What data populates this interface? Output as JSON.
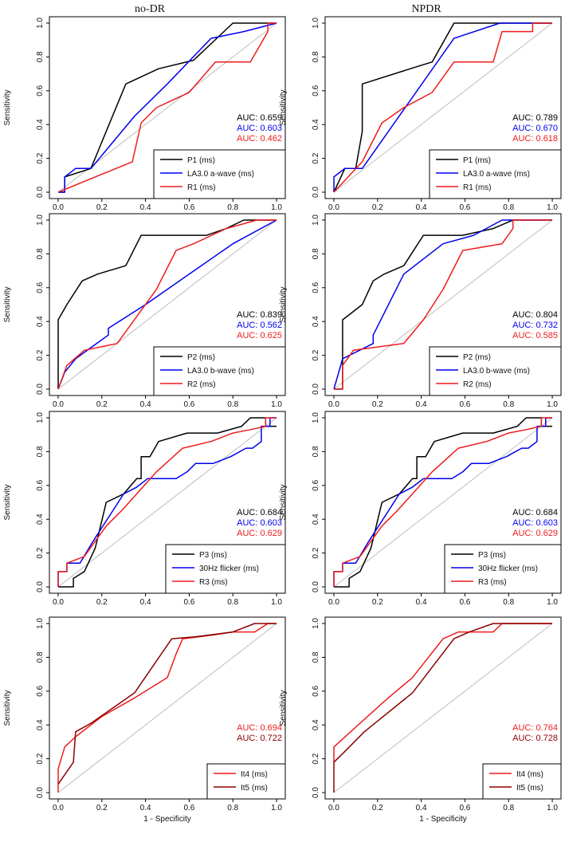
{
  "figure": {
    "column_titles": [
      "no-DR",
      "NPDR"
    ],
    "ylabel": "Sensitivity",
    "xlabel": "1 - Specificity"
  },
  "colors": {
    "black": "#000000",
    "blue": "#0000ee",
    "red": "#ee1c1c",
    "darkred": "#8b0000",
    "diagonal": "#bdbdbd"
  },
  "chart_data": [
    {
      "type": "line",
      "panel": "no-DR row 1",
      "xlim": [
        0,
        1
      ],
      "ylim": [
        0,
        1
      ],
      "xticks": [
        "0.0",
        "0.2",
        "0.4",
        "0.6",
        "0.8",
        "1.0"
      ],
      "yticks": [
        "0.0",
        "0.2",
        "0.4",
        "0.6",
        "0.8",
        "1.0"
      ],
      "legend_position": "bottom-right",
      "reference_diagonal": true,
      "series": [
        {
          "name": "P1 (ms)",
          "color": "black",
          "auc": "AUC: 0.659",
          "x": [
            0,
            0.03,
            0.03,
            0.15,
            0.22,
            0.31,
            0.46,
            0.62,
            0.8,
            1.0
          ],
          "y": [
            0,
            0,
            0.09,
            0.14,
            0.36,
            0.64,
            0.73,
            0.78,
            1.0,
            1.0
          ]
        },
        {
          "name": "LA3.0 a-wave (ms)",
          "color": "blue",
          "auc": "AUC: 0.603",
          "x": [
            0,
            0.03,
            0.03,
            0.08,
            0.15,
            0.35,
            0.5,
            0.7,
            0.85,
            1.0
          ],
          "y": [
            0,
            0,
            0.09,
            0.14,
            0.14,
            0.45,
            0.64,
            0.91,
            0.95,
            1.0
          ]
        },
        {
          "name": "R1 (ms)",
          "color": "red",
          "auc": "AUC: 0.462",
          "x": [
            0,
            0.34,
            0.38,
            0.45,
            0.6,
            0.72,
            0.88,
            0.96,
            0.96,
            1.0
          ],
          "y": [
            0,
            0.18,
            0.41,
            0.5,
            0.59,
            0.77,
            0.77,
            0.95,
            1.0,
            1.0
          ]
        }
      ]
    },
    {
      "type": "line",
      "panel": "NPDR row 1",
      "xlim": [
        0,
        1
      ],
      "ylim": [
        0,
        1
      ],
      "xticks": [
        "0.0",
        "0.2",
        "0.4",
        "0.6",
        "0.8",
        "1.0"
      ],
      "yticks": [
        "0.0",
        "0.2",
        "0.4",
        "0.6",
        "0.8",
        "1.0"
      ],
      "legend_position": "bottom-right",
      "reference_diagonal": true,
      "series": [
        {
          "name": "P1 (ms)",
          "color": "black",
          "auc": "AUC: 0.789",
          "x": [
            0,
            0.05,
            0.1,
            0.13,
            0.13,
            0.35,
            0.45,
            0.55,
            1.0
          ],
          "y": [
            0,
            0.14,
            0.14,
            0.36,
            0.64,
            0.73,
            0.77,
            1.0,
            1.0
          ]
        },
        {
          "name": "LA3.0 a-wave (ms)",
          "color": "blue",
          "auc": "AUC: 0.670",
          "x": [
            0,
            0,
            0.05,
            0.13,
            0.55,
            0.76,
            1.0
          ],
          "y": [
            0,
            0.09,
            0.14,
            0.14,
            0.91,
            1.0,
            1.0
          ]
        },
        {
          "name": "R1 (ms)",
          "color": "red",
          "auc": "AUC: 0.618",
          "x": [
            0,
            0.13,
            0.22,
            0.32,
            0.45,
            0.55,
            0.73,
            0.77,
            0.91,
            0.91,
            1.0
          ],
          "y": [
            0,
            0.18,
            0.41,
            0.5,
            0.59,
            0.77,
            0.77,
            0.95,
            0.95,
            1.0,
            1.0
          ]
        }
      ]
    },
    {
      "type": "line",
      "panel": "no-DR row 2",
      "xlim": [
        0,
        1
      ],
      "ylim": [
        0,
        1
      ],
      "xticks": [
        "0.0",
        "0.2",
        "0.4",
        "0.6",
        "0.8",
        "1.0"
      ],
      "yticks": [
        "0.0",
        "0.2",
        "0.4",
        "0.6",
        "0.8",
        "1.0"
      ],
      "legend_position": "bottom-right",
      "reference_diagonal": true,
      "series": [
        {
          "name": "P2 (ms)",
          "color": "black",
          "auc": "AUC: 0.839",
          "x": [
            0,
            0,
            0.04,
            0.11,
            0.18,
            0.31,
            0.38,
            0.68,
            0.77,
            0.85,
            1.0
          ],
          "y": [
            0,
            0.41,
            0.5,
            0.64,
            0.68,
            0.73,
            0.91,
            0.91,
            0.95,
            1.0,
            1.0
          ]
        },
        {
          "name": "LA3.0 b-wave (ms)",
          "color": "blue",
          "auc": "AUC: 0.562",
          "x": [
            0,
            0.03,
            0.08,
            0.23,
            0.23,
            0.4,
            0.6,
            0.8,
            1.0
          ],
          "y": [
            0,
            0.1,
            0.18,
            0.32,
            0.36,
            0.5,
            0.68,
            0.86,
            1.0
          ]
        },
        {
          "name": "R2 (ms)",
          "color": "red",
          "auc": "AUC: 0.625",
          "x": [
            0,
            0.04,
            0.12,
            0.27,
            0.45,
            0.54,
            0.62,
            0.77,
            0.91,
            1.0
          ],
          "y": [
            0,
            0.14,
            0.23,
            0.27,
            0.59,
            0.82,
            0.86,
            0.95,
            1.0,
            1.0
          ]
        }
      ]
    },
    {
      "type": "line",
      "panel": "NPDR row 2",
      "xlim": [
        0,
        1
      ],
      "ylim": [
        0,
        1
      ],
      "xticks": [
        "0.0",
        "0.2",
        "0.4",
        "0.6",
        "0.8",
        "1.0"
      ],
      "yticks": [
        "0.0",
        "0.2",
        "0.4",
        "0.6",
        "0.8",
        "1.0"
      ],
      "legend_position": "bottom-right",
      "reference_diagonal": true,
      "series": [
        {
          "name": "P2 (ms)",
          "color": "black",
          "auc": "AUC: 0.804",
          "x": [
            0,
            0.04,
            0.04,
            0.13,
            0.18,
            0.23,
            0.32,
            0.41,
            0.59,
            0.73,
            0.82,
            1.0
          ],
          "y": [
            0,
            0,
            0.41,
            0.5,
            0.64,
            0.68,
            0.73,
            0.91,
            0.91,
            0.95,
            1.0,
            1.0
          ]
        },
        {
          "name": "LA3.0 b-wave (ms)",
          "color": "blue",
          "auc": "AUC: 0.732",
          "x": [
            0,
            0.04,
            0.18,
            0.18,
            0.32,
            0.5,
            0.64,
            0.77,
            1.0
          ],
          "y": [
            0,
            0.18,
            0.27,
            0.32,
            0.68,
            0.86,
            0.91,
            1.0,
            1.0
          ]
        },
        {
          "name": "R2 (ms)",
          "color": "red",
          "auc": "AUC: 0.585",
          "x": [
            0,
            0.04,
            0.04,
            0.09,
            0.32,
            0.41,
            0.5,
            0.59,
            0.77,
            0.82,
            0.82,
            1.0
          ],
          "y": [
            0,
            0,
            0.14,
            0.23,
            0.27,
            0.41,
            0.59,
            0.82,
            0.86,
            0.95,
            1.0,
            1.0
          ]
        }
      ]
    },
    {
      "type": "line",
      "panel": "no-DR row 3",
      "xlim": [
        0,
        1
      ],
      "ylim": [
        0,
        1
      ],
      "xticks": [
        "0.0",
        "0.2",
        "0.4",
        "0.6",
        "0.8",
        "1.0"
      ],
      "yticks": [
        "0.0",
        "0.2",
        "0.4",
        "0.6",
        "0.8",
        "1.0"
      ],
      "legend_position": "bottom-right",
      "reference_diagonal": true,
      "series": [
        {
          "name": "P3 (ms)",
          "color": "black",
          "auc": "AUC: 0.684",
          "x": [
            0,
            0.07,
            0.07,
            0.12,
            0.17,
            0.22,
            0.3,
            0.36,
            0.38,
            0.38,
            0.42,
            0.46,
            0.59,
            0.73,
            0.84,
            0.88,
            0.95,
            0.95,
            1.0
          ],
          "y": [
            0,
            0,
            0.05,
            0.09,
            0.23,
            0.5,
            0.55,
            0.64,
            0.64,
            0.77,
            0.77,
            0.86,
            0.91,
            0.91,
            0.95,
            1.0,
            1.0,
            0.95,
            0.95
          ]
        },
        {
          "name": "30Hz flicker (ms)",
          "color": "blue",
          "auc": "AUC: 0.603",
          "x": [
            0,
            0,
            0.04,
            0.04,
            0.1,
            0.16,
            0.25,
            0.3,
            0.36,
            0.41,
            0.46,
            0.54,
            0.59,
            0.63,
            0.71,
            0.79,
            0.86,
            0.89,
            0.93,
            0.93,
            0.97,
            0.97,
            1.0
          ],
          "y": [
            0,
            0.09,
            0.09,
            0.14,
            0.14,
            0.27,
            0.45,
            0.55,
            0.59,
            0.64,
            0.64,
            0.64,
            0.68,
            0.73,
            0.73,
            0.77,
            0.82,
            0.82,
            0.86,
            0.95,
            0.95,
            1.0,
            1.0
          ]
        },
        {
          "name": "R3 (ms)",
          "color": "red",
          "auc": "AUC: 0.629",
          "x": [
            0,
            0,
            0.04,
            0.04,
            0.12,
            0.17,
            0.22,
            0.29,
            0.36,
            0.45,
            0.57,
            0.7,
            0.8,
            0.88,
            0.95,
            0.95,
            1.0
          ],
          "y": [
            0,
            0.09,
            0.09,
            0.14,
            0.18,
            0.27,
            0.36,
            0.45,
            0.55,
            0.68,
            0.82,
            0.86,
            0.91,
            0.93,
            0.95,
            1.0,
            1.0
          ]
        }
      ]
    },
    {
      "type": "line",
      "panel": "NPDR row 3",
      "xlim": [
        0,
        1
      ],
      "ylim": [
        0,
        1
      ],
      "xticks": [
        "0.0",
        "0.2",
        "0.4",
        "0.6",
        "0.8",
        "1.0"
      ],
      "yticks": [
        "0.0",
        "0.2",
        "0.4",
        "0.6",
        "0.8",
        "1.0"
      ],
      "legend_position": "bottom-right",
      "reference_diagonal": true,
      "series": [
        {
          "name": "P3 (ms)",
          "color": "black",
          "auc": "AUC: 0.684",
          "x": [
            0,
            0.07,
            0.07,
            0.12,
            0.17,
            0.22,
            0.3,
            0.36,
            0.38,
            0.38,
            0.42,
            0.46,
            0.59,
            0.73,
            0.84,
            0.88,
            0.95,
            0.95,
            1.0
          ],
          "y": [
            0,
            0,
            0.05,
            0.09,
            0.23,
            0.5,
            0.55,
            0.64,
            0.64,
            0.77,
            0.77,
            0.86,
            0.91,
            0.91,
            0.95,
            1.0,
            1.0,
            0.95,
            0.95
          ]
        },
        {
          "name": "30Hz flicker (ms)",
          "color": "blue",
          "auc": "AUC: 0.603",
          "x": [
            0,
            0,
            0.04,
            0.04,
            0.1,
            0.16,
            0.25,
            0.3,
            0.36,
            0.41,
            0.46,
            0.54,
            0.59,
            0.63,
            0.71,
            0.79,
            0.86,
            0.89,
            0.93,
            0.93,
            0.97,
            0.97,
            1.0
          ],
          "y": [
            0,
            0.09,
            0.09,
            0.14,
            0.14,
            0.27,
            0.45,
            0.55,
            0.59,
            0.64,
            0.64,
            0.64,
            0.68,
            0.73,
            0.73,
            0.77,
            0.82,
            0.82,
            0.86,
            0.95,
            0.95,
            1.0,
            1.0
          ]
        },
        {
          "name": "R3 (ms)",
          "color": "red",
          "auc": "AUC: 0.629",
          "x": [
            0,
            0,
            0.04,
            0.04,
            0.12,
            0.17,
            0.22,
            0.29,
            0.36,
            0.45,
            0.57,
            0.7,
            0.8,
            0.88,
            0.95,
            0.95,
            1.0
          ],
          "y": [
            0,
            0.09,
            0.09,
            0.14,
            0.18,
            0.27,
            0.36,
            0.45,
            0.55,
            0.68,
            0.82,
            0.86,
            0.91,
            0.93,
            0.95,
            1.0,
            1.0
          ]
        }
      ]
    },
    {
      "type": "line",
      "panel": "no-DR row 4",
      "xlim": [
        0,
        1
      ],
      "ylim": [
        0,
        1
      ],
      "xticks": [
        "0.0",
        "0.2",
        "0.4",
        "0.6",
        "0.8",
        "1.0"
      ],
      "yticks": [
        "0.0",
        "0.2",
        "0.4",
        "0.6",
        "0.8",
        "1.0"
      ],
      "legend_position": "bottom-right",
      "reference_diagonal": true,
      "series": [
        {
          "name": "It4 (ms)",
          "color": "red",
          "auc": "AUC: 0.694",
          "x": [
            0,
            0,
            0.03,
            0.08,
            0.2,
            0.35,
            0.5,
            0.54,
            0.57,
            0.7,
            0.8,
            0.9,
            0.96,
            1.0
          ],
          "y": [
            0,
            0.14,
            0.27,
            0.33,
            0.45,
            0.56,
            0.68,
            0.82,
            0.91,
            0.93,
            0.95,
            0.95,
            1.0,
            1.0
          ]
        },
        {
          "name": "It5 (ms)",
          "color": "darkred",
          "auc": "AUC: 0.722",
          "x": [
            0,
            0.07,
            0.08,
            0.15,
            0.35,
            0.52,
            0.62,
            0.8,
            0.9,
            1.0
          ],
          "y": [
            0.05,
            0.18,
            0.36,
            0.41,
            0.59,
            0.91,
            0.92,
            0.95,
            1.0,
            1.0
          ]
        }
      ]
    },
    {
      "type": "line",
      "panel": "NPDR row 4",
      "xlim": [
        0,
        1
      ],
      "ylim": [
        0,
        1
      ],
      "xticks": [
        "0.0",
        "0.2",
        "0.4",
        "0.6",
        "0.8",
        "1.0"
      ],
      "yticks": [
        "0.0",
        "0.2",
        "0.4",
        "0.6",
        "0.8",
        "1.0"
      ],
      "legend_position": "bottom-right",
      "reference_diagonal": true,
      "series": [
        {
          "name": "It4 (ms)",
          "color": "red",
          "auc": "AUC: 0.764",
          "x": [
            0,
            0,
            0.12,
            0.24,
            0.36,
            0.5,
            0.57,
            0.64,
            0.73,
            0.77,
            1.0
          ],
          "y": [
            0.18,
            0.27,
            0.41,
            0.55,
            0.68,
            0.91,
            0.95,
            0.95,
            0.95,
            1.0,
            1.0
          ]
        },
        {
          "name": "It5 (ms)",
          "color": "darkred",
          "auc": "AUC: 0.728",
          "x": [
            0,
            0,
            0.04,
            0.14,
            0.36,
            0.55,
            0.62,
            0.73,
            1.0
          ],
          "y": [
            0,
            0.18,
            0.23,
            0.36,
            0.59,
            0.91,
            0.95,
            1.0,
            1.0
          ]
        }
      ]
    }
  ]
}
